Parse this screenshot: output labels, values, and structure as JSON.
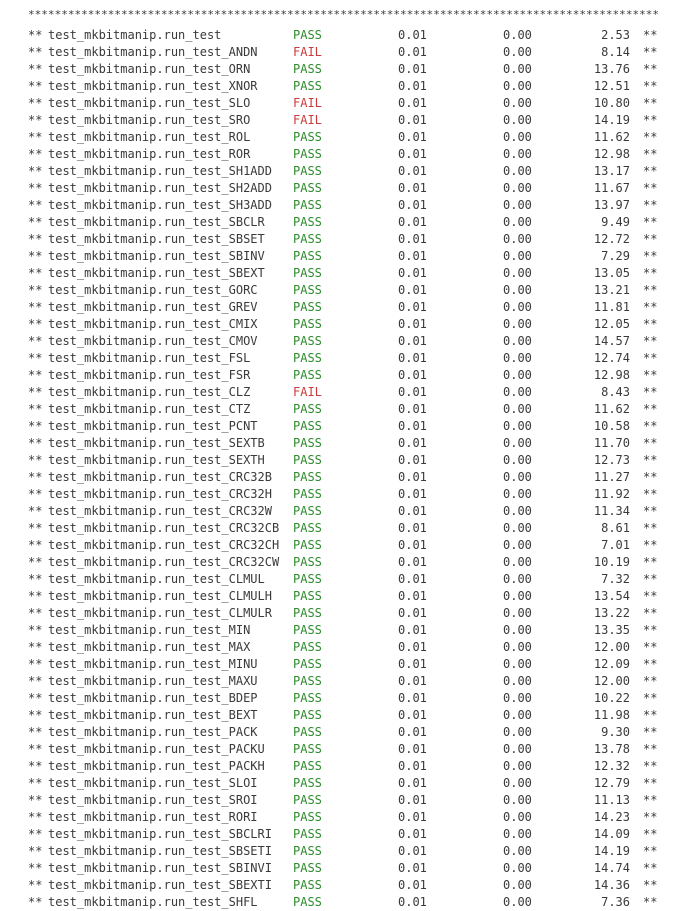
{
  "separator": "**************************************************************************************************************",
  "row_prefix": "**",
  "row_suffix": "**",
  "colors": {
    "pass": "#2e8b2e",
    "fail": "#cc3b3b",
    "text": "#3a3a3a"
  },
  "rows": [
    {
      "test": "test_mkbitmanip.run_test",
      "status": "PASS",
      "sim_time": "0.01",
      "real_time": "0.00",
      "ratio": "2.53"
    },
    {
      "test": "test_mkbitmanip.run_test_ANDN",
      "status": "FAIL",
      "sim_time": "0.01",
      "real_time": "0.00",
      "ratio": "8.14"
    },
    {
      "test": "test_mkbitmanip.run_test_ORN",
      "status": "PASS",
      "sim_time": "0.01",
      "real_time": "0.00",
      "ratio": "13.76"
    },
    {
      "test": "test_mkbitmanip.run_test_XNOR",
      "status": "PASS",
      "sim_time": "0.01",
      "real_time": "0.00",
      "ratio": "12.51"
    },
    {
      "test": "test_mkbitmanip.run_test_SLO",
      "status": "FAIL",
      "sim_time": "0.01",
      "real_time": "0.00",
      "ratio": "10.80"
    },
    {
      "test": "test_mkbitmanip.run_test_SRO",
      "status": "FAIL",
      "sim_time": "0.01",
      "real_time": "0.00",
      "ratio": "14.19"
    },
    {
      "test": "test_mkbitmanip.run_test_ROL",
      "status": "PASS",
      "sim_time": "0.01",
      "real_time": "0.00",
      "ratio": "11.62"
    },
    {
      "test": "test_mkbitmanip.run_test_ROR",
      "status": "PASS",
      "sim_time": "0.01",
      "real_time": "0.00",
      "ratio": "12.98"
    },
    {
      "test": "test_mkbitmanip.run_test_SH1ADD",
      "status": "PASS",
      "sim_time": "0.01",
      "real_time": "0.00",
      "ratio": "13.17"
    },
    {
      "test": "test_mkbitmanip.run_test_SH2ADD",
      "status": "PASS",
      "sim_time": "0.01",
      "real_time": "0.00",
      "ratio": "11.67"
    },
    {
      "test": "test_mkbitmanip.run_test_SH3ADD",
      "status": "PASS",
      "sim_time": "0.01",
      "real_time": "0.00",
      "ratio": "13.97"
    },
    {
      "test": "test_mkbitmanip.run_test_SBCLR",
      "status": "PASS",
      "sim_time": "0.01",
      "real_time": "0.00",
      "ratio": "9.49"
    },
    {
      "test": "test_mkbitmanip.run_test_SBSET",
      "status": "PASS",
      "sim_time": "0.01",
      "real_time": "0.00",
      "ratio": "12.72"
    },
    {
      "test": "test_mkbitmanip.run_test_SBINV",
      "status": "PASS",
      "sim_time": "0.01",
      "real_time": "0.00",
      "ratio": "7.29"
    },
    {
      "test": "test_mkbitmanip.run_test_SBEXT",
      "status": "PASS",
      "sim_time": "0.01",
      "real_time": "0.00",
      "ratio": "13.05"
    },
    {
      "test": "test_mkbitmanip.run_test_GORC",
      "status": "PASS",
      "sim_time": "0.01",
      "real_time": "0.00",
      "ratio": "13.21"
    },
    {
      "test": "test_mkbitmanip.run_test_GREV",
      "status": "PASS",
      "sim_time": "0.01",
      "real_time": "0.00",
      "ratio": "11.81"
    },
    {
      "test": "test_mkbitmanip.run_test_CMIX",
      "status": "PASS",
      "sim_time": "0.01",
      "real_time": "0.00",
      "ratio": "12.05"
    },
    {
      "test": "test_mkbitmanip.run_test_CMOV",
      "status": "PASS",
      "sim_time": "0.01",
      "real_time": "0.00",
      "ratio": "14.57"
    },
    {
      "test": "test_mkbitmanip.run_test_FSL",
      "status": "PASS",
      "sim_time": "0.01",
      "real_time": "0.00",
      "ratio": "12.74"
    },
    {
      "test": "test_mkbitmanip.run_test_FSR",
      "status": "PASS",
      "sim_time": "0.01",
      "real_time": "0.00",
      "ratio": "12.98"
    },
    {
      "test": "test_mkbitmanip.run_test_CLZ",
      "status": "FAIL",
      "sim_time": "0.01",
      "real_time": "0.00",
      "ratio": "8.43"
    },
    {
      "test": "test_mkbitmanip.run_test_CTZ",
      "status": "PASS",
      "sim_time": "0.01",
      "real_time": "0.00",
      "ratio": "11.62"
    },
    {
      "test": "test_mkbitmanip.run_test_PCNT",
      "status": "PASS",
      "sim_time": "0.01",
      "real_time": "0.00",
      "ratio": "10.58"
    },
    {
      "test": "test_mkbitmanip.run_test_SEXTB",
      "status": "PASS",
      "sim_time": "0.01",
      "real_time": "0.00",
      "ratio": "11.70"
    },
    {
      "test": "test_mkbitmanip.run_test_SEXTH",
      "status": "PASS",
      "sim_time": "0.01",
      "real_time": "0.00",
      "ratio": "12.73"
    },
    {
      "test": "test_mkbitmanip.run_test_CRC32B",
      "status": "PASS",
      "sim_time": "0.01",
      "real_time": "0.00",
      "ratio": "11.27"
    },
    {
      "test": "test_mkbitmanip.run_test_CRC32H",
      "status": "PASS",
      "sim_time": "0.01",
      "real_time": "0.00",
      "ratio": "11.92"
    },
    {
      "test": "test_mkbitmanip.run_test_CRC32W",
      "status": "PASS",
      "sim_time": "0.01",
      "real_time": "0.00",
      "ratio": "11.34"
    },
    {
      "test": "test_mkbitmanip.run_test_CRC32CB",
      "status": "PASS",
      "sim_time": "0.01",
      "real_time": "0.00",
      "ratio": "8.61"
    },
    {
      "test": "test_mkbitmanip.run_test_CRC32CH",
      "status": "PASS",
      "sim_time": "0.01",
      "real_time": "0.00",
      "ratio": "7.01"
    },
    {
      "test": "test_mkbitmanip.run_test_CRC32CW",
      "status": "PASS",
      "sim_time": "0.01",
      "real_time": "0.00",
      "ratio": "10.19"
    },
    {
      "test": "test_mkbitmanip.run_test_CLMUL",
      "status": "PASS",
      "sim_time": "0.01",
      "real_time": "0.00",
      "ratio": "7.32"
    },
    {
      "test": "test_mkbitmanip.run_test_CLMULH",
      "status": "PASS",
      "sim_time": "0.01",
      "real_time": "0.00",
      "ratio": "13.54"
    },
    {
      "test": "test_mkbitmanip.run_test_CLMULR",
      "status": "PASS",
      "sim_time": "0.01",
      "real_time": "0.00",
      "ratio": "13.22"
    },
    {
      "test": "test_mkbitmanip.run_test_MIN",
      "status": "PASS",
      "sim_time": "0.01",
      "real_time": "0.00",
      "ratio": "13.35"
    },
    {
      "test": "test_mkbitmanip.run_test_MAX",
      "status": "PASS",
      "sim_time": "0.01",
      "real_time": "0.00",
      "ratio": "12.00"
    },
    {
      "test": "test_mkbitmanip.run_test_MINU",
      "status": "PASS",
      "sim_time": "0.01",
      "real_time": "0.00",
      "ratio": "12.09"
    },
    {
      "test": "test_mkbitmanip.run_test_MAXU",
      "status": "PASS",
      "sim_time": "0.01",
      "real_time": "0.00",
      "ratio": "12.00"
    },
    {
      "test": "test_mkbitmanip.run_test_BDEP",
      "status": "PASS",
      "sim_time": "0.01",
      "real_time": "0.00",
      "ratio": "10.22"
    },
    {
      "test": "test_mkbitmanip.run_test_BEXT",
      "status": "PASS",
      "sim_time": "0.01",
      "real_time": "0.00",
      "ratio": "11.98"
    },
    {
      "test": "test_mkbitmanip.run_test_PACK",
      "status": "PASS",
      "sim_time": "0.01",
      "real_time": "0.00",
      "ratio": "9.30"
    },
    {
      "test": "test_mkbitmanip.run_test_PACKU",
      "status": "PASS",
      "sim_time": "0.01",
      "real_time": "0.00",
      "ratio": "13.78"
    },
    {
      "test": "test_mkbitmanip.run_test_PACKH",
      "status": "PASS",
      "sim_time": "0.01",
      "real_time": "0.00",
      "ratio": "12.32"
    },
    {
      "test": "test_mkbitmanip.run_test_SLOI",
      "status": "PASS",
      "sim_time": "0.01",
      "real_time": "0.00",
      "ratio": "12.79"
    },
    {
      "test": "test_mkbitmanip.run_test_SROI",
      "status": "PASS",
      "sim_time": "0.01",
      "real_time": "0.00",
      "ratio": "11.13"
    },
    {
      "test": "test_mkbitmanip.run_test_RORI",
      "status": "PASS",
      "sim_time": "0.01",
      "real_time": "0.00",
      "ratio": "14.23"
    },
    {
      "test": "test_mkbitmanip.run_test_SBCLRI",
      "status": "PASS",
      "sim_time": "0.01",
      "real_time": "0.00",
      "ratio": "14.09"
    },
    {
      "test": "test_mkbitmanip.run_test_SBSETI",
      "status": "PASS",
      "sim_time": "0.01",
      "real_time": "0.00",
      "ratio": "14.19"
    },
    {
      "test": "test_mkbitmanip.run_test_SBINVI",
      "status": "PASS",
      "sim_time": "0.01",
      "real_time": "0.00",
      "ratio": "14.74"
    },
    {
      "test": "test_mkbitmanip.run_test_SBEXTI",
      "status": "PASS",
      "sim_time": "0.01",
      "real_time": "0.00",
      "ratio": "14.36"
    },
    {
      "test": "test_mkbitmanip.run_test_SHFL",
      "status": "PASS",
      "sim_time": "0.01",
      "real_time": "0.00",
      "ratio": "7.36"
    }
  ]
}
